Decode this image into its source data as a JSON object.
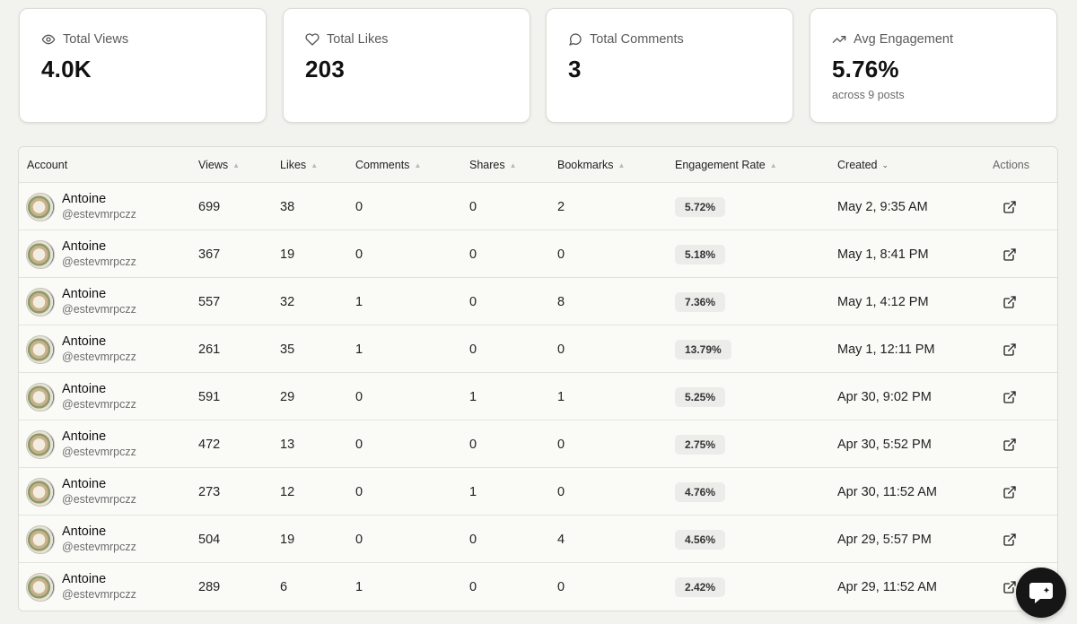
{
  "stats": [
    {
      "label": "Total Views",
      "value": "4.0K",
      "icon": "eye-icon"
    },
    {
      "label": "Total Likes",
      "value": "203",
      "icon": "heart-icon"
    },
    {
      "label": "Total Comments",
      "value": "3",
      "icon": "comment-icon"
    },
    {
      "label": "Avg Engagement",
      "value": "5.76%",
      "sub": "across 9 posts",
      "icon": "trending-up-icon"
    }
  ],
  "table": {
    "headers": {
      "account": "Account",
      "views": "Views",
      "likes": "Likes",
      "comments": "Comments",
      "shares": "Shares",
      "bookmarks": "Bookmarks",
      "engagement": "Engagement Rate",
      "created": "Created",
      "actions": "Actions"
    },
    "sorted_column": "created",
    "rows": [
      {
        "name": "Antoine",
        "handle": "@estevmrpczz",
        "views": "699",
        "likes": "38",
        "comments": "0",
        "shares": "0",
        "bookmarks": "2",
        "engagement": "5.72%",
        "created": "May 2, 9:35 AM"
      },
      {
        "name": "Antoine",
        "handle": "@estevmrpczz",
        "views": "367",
        "likes": "19",
        "comments": "0",
        "shares": "0",
        "bookmarks": "0",
        "engagement": "5.18%",
        "created": "May 1, 8:41 PM"
      },
      {
        "name": "Antoine",
        "handle": "@estevmrpczz",
        "views": "557",
        "likes": "32",
        "comments": "1",
        "shares": "0",
        "bookmarks": "8",
        "engagement": "7.36%",
        "created": "May 1, 4:12 PM"
      },
      {
        "name": "Antoine",
        "handle": "@estevmrpczz",
        "views": "261",
        "likes": "35",
        "comments": "1",
        "shares": "0",
        "bookmarks": "0",
        "engagement": "13.79%",
        "created": "May 1, 12:11 PM"
      },
      {
        "name": "Antoine",
        "handle": "@estevmrpczz",
        "views": "591",
        "likes": "29",
        "comments": "0",
        "shares": "1",
        "bookmarks": "1",
        "engagement": "5.25%",
        "created": "Apr 30, 9:02 PM"
      },
      {
        "name": "Antoine",
        "handle": "@estevmrpczz",
        "views": "472",
        "likes": "13",
        "comments": "0",
        "shares": "0",
        "bookmarks": "0",
        "engagement": "2.75%",
        "created": "Apr 30, 5:52 PM"
      },
      {
        "name": "Antoine",
        "handle": "@estevmrpczz",
        "views": "273",
        "likes": "12",
        "comments": "0",
        "shares": "1",
        "bookmarks": "0",
        "engagement": "4.76%",
        "created": "Apr 30, 11:52 AM"
      },
      {
        "name": "Antoine",
        "handle": "@estevmrpczz",
        "views": "504",
        "likes": "19",
        "comments": "0",
        "shares": "0",
        "bookmarks": "4",
        "engagement": "4.56%",
        "created": "Apr 29, 5:57 PM"
      },
      {
        "name": "Antoine",
        "handle": "@estevmrpczz",
        "views": "289",
        "likes": "6",
        "comments": "1",
        "shares": "0",
        "bookmarks": "0",
        "engagement": "2.42%",
        "created": "Apr 29, 11:52 AM"
      }
    ]
  },
  "chat_widget": {
    "icon": "chat-bubble-icon"
  }
}
